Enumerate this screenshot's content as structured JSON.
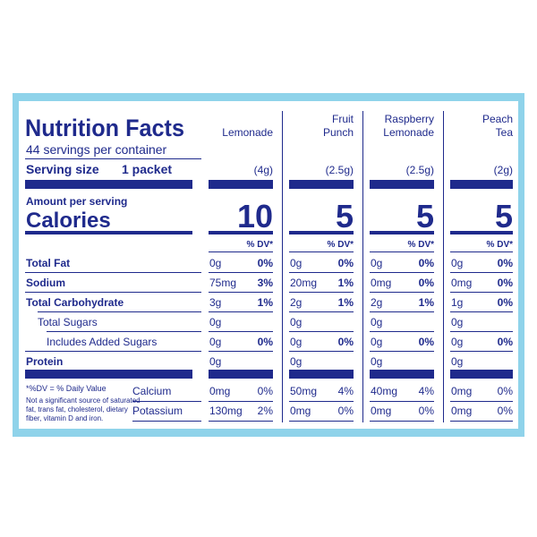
{
  "header": {
    "title": "Nutrition Facts",
    "servings": "44 servings per container",
    "serving_size_label": "Serving size",
    "serving_size": "1 packet",
    "amount_per_serving": "Amount per serving",
    "calories_label": "Calories",
    "dv_note": "*%DV = % Daily Value",
    "footnote": [
      "Not a significant source of saturated",
      "fat, trans fat, cholesterol, dietary",
      "fiber, vitamin D and iron."
    ]
  },
  "nutrient_labels": [
    "Total Fat",
    "Sodium",
    "Total Carbohydrate",
    "Total Sugars",
    "Includes Added Sugars",
    "Protein"
  ],
  "mineral_labels": [
    "Calcium",
    "Potassium"
  ],
  "columns": [
    {
      "name": [
        "Lemonade"
      ],
      "serving": "(4g)",
      "calories": "10",
      "dv_header": "% DV*",
      "nutrients": [
        {
          "amount": "0g",
          "dv": "0%"
        },
        {
          "amount": "75mg",
          "dv": "3%"
        },
        {
          "amount": "3g",
          "dv": "1%"
        },
        {
          "amount": "0g",
          "dv": null
        },
        {
          "amount": "0g",
          "dv": "0%"
        },
        {
          "amount": "0g",
          "dv": null
        }
      ],
      "minerals": [
        {
          "amount": "0mg",
          "dv": "0%"
        },
        {
          "amount": "130mg",
          "dv": "2%"
        }
      ]
    },
    {
      "name": [
        "Fruit",
        "Punch"
      ],
      "serving": "(2.5g)",
      "calories": "5",
      "dv_header": "% DV*",
      "nutrients": [
        {
          "amount": "0g",
          "dv": "0%"
        },
        {
          "amount": "20mg",
          "dv": "1%"
        },
        {
          "amount": "2g",
          "dv": "1%"
        },
        {
          "amount": "0g",
          "dv": null
        },
        {
          "amount": "0g",
          "dv": "0%"
        },
        {
          "amount": "0g",
          "dv": null
        }
      ],
      "minerals": [
        {
          "amount": "50mg",
          "dv": "4%"
        },
        {
          "amount": "0mg",
          "dv": "0%"
        }
      ]
    },
    {
      "name": [
        "Raspberry",
        "Lemonade"
      ],
      "serving": "(2.5g)",
      "calories": "5",
      "dv_header": "% DV*",
      "nutrients": [
        {
          "amount": "0g",
          "dv": "0%"
        },
        {
          "amount": "0mg",
          "dv": "0%"
        },
        {
          "amount": "2g",
          "dv": "1%"
        },
        {
          "amount": "0g",
          "dv": null
        },
        {
          "amount": "0g",
          "dv": "0%"
        },
        {
          "amount": "0g",
          "dv": null
        }
      ],
      "minerals": [
        {
          "amount": "40mg",
          "dv": "4%"
        },
        {
          "amount": "0mg",
          "dv": "0%"
        }
      ]
    },
    {
      "name": [
        "Peach",
        "Tea"
      ],
      "serving": "(2g)",
      "calories": "5",
      "dv_header": "% DV*",
      "nutrients": [
        {
          "amount": "0g",
          "dv": "0%"
        },
        {
          "amount": "0mg",
          "dv": "0%"
        },
        {
          "amount": "1g",
          "dv": "0%"
        },
        {
          "amount": "0g",
          "dv": null
        },
        {
          "amount": "0g",
          "dv": "0%"
        },
        {
          "amount": "0g",
          "dv": null
        }
      ],
      "minerals": [
        {
          "amount": "0mg",
          "dv": "0%"
        },
        {
          "amount": "0mg",
          "dv": "0%"
        }
      ]
    }
  ]
}
